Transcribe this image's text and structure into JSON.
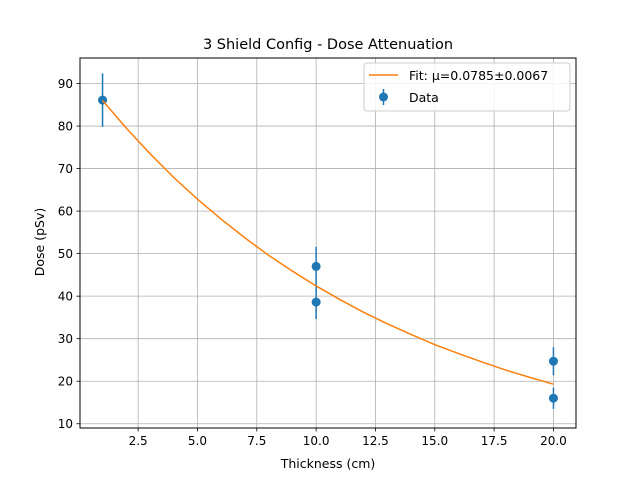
{
  "chart_data": {
    "type": "scatter",
    "title": "3 Shield Config - Dose Attenuation",
    "xlabel": "Thickness (cm)",
    "ylabel": "Dose (pSv)",
    "xlim": [
      0.05,
      20.95
    ],
    "ylim": [
      9.0,
      96.0
    ],
    "xticks": [
      2.5,
      5.0,
      7.5,
      10.0,
      12.5,
      15.0,
      17.5,
      20.0
    ],
    "xtick_labels": [
      "2.5",
      "5.0",
      "7.5",
      "10.0",
      "12.5",
      "15.0",
      "17.5",
      "20.0"
    ],
    "yticks": [
      10,
      20,
      30,
      40,
      50,
      60,
      70,
      80,
      90
    ],
    "ytick_labels": [
      "10",
      "20",
      "30",
      "40",
      "50",
      "60",
      "70",
      "80",
      "90"
    ],
    "grid": true,
    "legend_position": "top-right",
    "series": [
      {
        "name": "Data",
        "kind": "errorbar",
        "color": "#1f77b4",
        "points": [
          {
            "x": 1.0,
            "y": 86.1,
            "yerr": 6.3
          },
          {
            "x": 10.0,
            "y": 47.0,
            "yerr": 4.6
          },
          {
            "x": 10.0,
            "y": 38.6,
            "yerr": 4.0
          },
          {
            "x": 20.0,
            "y": 24.7,
            "yerr": 3.3
          },
          {
            "x": 20.0,
            "y": 16.0,
            "yerr": 2.5
          }
        ]
      },
      {
        "name": "Fit: μ=0.0785±0.0067",
        "kind": "line",
        "color": "#ff7f0e",
        "x": [
          1.0,
          2.0,
          3.0,
          4.0,
          5.0,
          6.0,
          7.0,
          8.0,
          9.0,
          10.0,
          11.0,
          12.0,
          13.0,
          14.0,
          15.0,
          16.0,
          17.0,
          18.0,
          19.0,
          20.0
        ],
        "y": [
          86.0,
          79.5,
          73.5,
          67.9,
          62.8,
          58.1,
          53.7,
          49.6,
          45.9,
          42.4,
          39.2,
          36.2,
          33.5,
          31.0,
          28.6,
          26.5,
          24.5,
          22.6,
          20.9,
          19.3
        ]
      }
    ]
  }
}
